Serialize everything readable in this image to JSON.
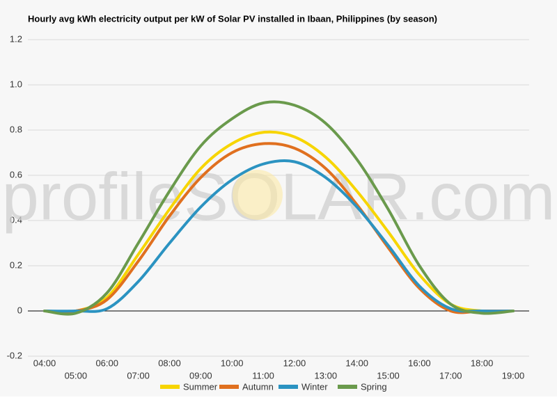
{
  "chart_data": {
    "type": "line",
    "title": "Hourly avg kWh electricity output per kW of Solar PV installed in Ibaan, Philippines (by season)",
    "watermark": "profileSOLAR.com",
    "categories": [
      "04:00",
      "05:00",
      "06:00",
      "07:00",
      "08:00",
      "09:00",
      "10:00",
      "11:00",
      "12:00",
      "13:00",
      "14:00",
      "15:00",
      "16:00",
      "17:00",
      "18:00",
      "19:00"
    ],
    "series": [
      {
        "name": "Summer",
        "color": "#f7d500",
        "values": [
          0,
          0,
          0.06,
          0.25,
          0.45,
          0.63,
          0.74,
          0.79,
          0.77,
          0.68,
          0.53,
          0.35,
          0.16,
          0.03,
          0,
          0
        ]
      },
      {
        "name": "Autumn",
        "color": "#e0701f",
        "values": [
          0,
          0,
          0.05,
          0.22,
          0.42,
          0.59,
          0.7,
          0.74,
          0.72,
          0.63,
          0.47,
          0.28,
          0.1,
          0,
          0,
          0
        ]
      },
      {
        "name": "Winter",
        "color": "#2b93c1",
        "values": [
          0,
          0,
          0.01,
          0.13,
          0.3,
          0.46,
          0.58,
          0.65,
          0.66,
          0.59,
          0.46,
          0.29,
          0.11,
          0.01,
          0,
          0
        ]
      },
      {
        "name": "Spring",
        "color": "#6a9a4c",
        "values": [
          0,
          -0.01,
          0.08,
          0.3,
          0.53,
          0.73,
          0.85,
          0.92,
          0.91,
          0.83,
          0.67,
          0.45,
          0.2,
          0.03,
          -0.01,
          0
        ]
      }
    ],
    "ylim": [
      -0.2,
      1.2
    ],
    "yticks": [
      -0.2,
      0,
      0.2,
      0.4,
      0.6,
      0.8,
      {
        "value": 1.0,
        "label": "1.0"
      },
      1.2
    ],
    "grid": true
  }
}
